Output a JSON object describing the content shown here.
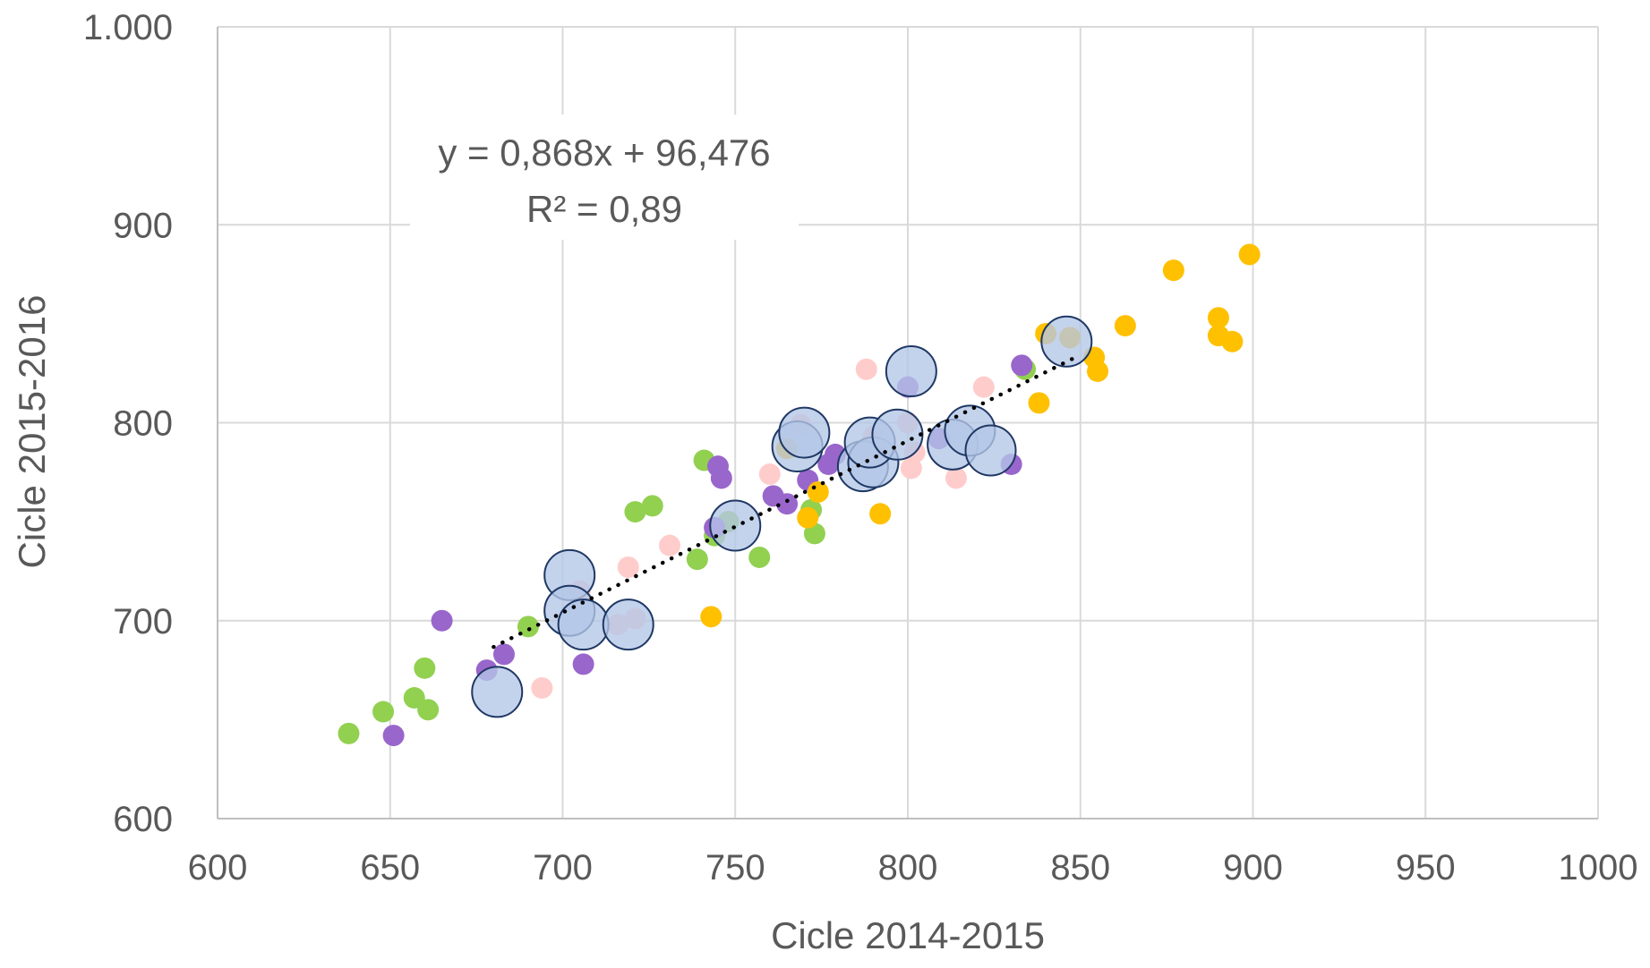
{
  "chart_data": {
    "type": "scatter",
    "title": "",
    "xlabel": "Cicle 2014-2015",
    "ylabel": "Cicle 2015-2016",
    "xlim": [
      600,
      1000
    ],
    "ylim": [
      600,
      1000
    ],
    "x_ticks": [
      600,
      650,
      700,
      750,
      800,
      850,
      900,
      950,
      1000
    ],
    "x_tick_labels": [
      "600",
      "650",
      "700",
      "750",
      "800",
      "850",
      "900",
      "950",
      "1000"
    ],
    "y_ticks": [
      600,
      700,
      800,
      900,
      1000
    ],
    "y_tick_labels": [
      "600",
      "700",
      "800",
      "900",
      "1.000"
    ],
    "grid": true,
    "legend": "none",
    "trendline": {
      "style": "dotted",
      "color": "#000000",
      "slope": 0.868,
      "intercept": 96.476,
      "x_range": [
        680,
        848
      ],
      "equation_label": "y = 0,868x + 96,476",
      "r2_label": "R² = 0,89"
    },
    "series": [
      {
        "color": "#92d050",
        "marker": "small",
        "points": [
          [
            638,
            643
          ],
          [
            648,
            654
          ],
          [
            657,
            661
          ],
          [
            660,
            676
          ],
          [
            661,
            655
          ],
          [
            690,
            697
          ],
          [
            721,
            755
          ],
          [
            726,
            758
          ],
          [
            739,
            731
          ],
          [
            741,
            781
          ],
          [
            744,
            743
          ],
          [
            748,
            750
          ],
          [
            757,
            732
          ],
          [
            772,
            756
          ],
          [
            773,
            744
          ],
          [
            834,
            827
          ]
        ]
      },
      {
        "color": "#9966cc",
        "marker": "small",
        "points": [
          [
            651,
            642
          ],
          [
            665,
            700
          ],
          [
            678,
            675
          ],
          [
            683,
            683
          ],
          [
            706,
            678
          ],
          [
            744,
            747
          ],
          [
            745,
            778
          ],
          [
            746,
            772
          ],
          [
            761,
            763
          ],
          [
            765,
            759
          ],
          [
            771,
            771
          ],
          [
            777,
            779
          ],
          [
            779,
            784
          ],
          [
            800,
            818
          ],
          [
            809,
            792
          ],
          [
            830,
            779
          ],
          [
            833,
            829
          ]
        ]
      },
      {
        "color": "#ffcccc",
        "marker": "small",
        "points": [
          [
            694,
            666
          ],
          [
            705,
            715
          ],
          [
            716,
            698
          ],
          [
            719,
            727
          ],
          [
            721,
            701
          ],
          [
            731,
            738
          ],
          [
            760,
            774
          ],
          [
            769,
            799
          ],
          [
            787,
            786
          ],
          [
            788,
            827
          ],
          [
            790,
            793
          ],
          [
            800,
            800
          ],
          [
            801,
            777
          ],
          [
            802,
            785
          ],
          [
            814,
            772
          ],
          [
            822,
            818
          ]
        ]
      },
      {
        "color": "#ffc000",
        "marker": "small",
        "points": [
          [
            743,
            702
          ],
          [
            765,
            787
          ],
          [
            771,
            752
          ],
          [
            774,
            765
          ],
          [
            792,
            754
          ],
          [
            838,
            810
          ],
          [
            840,
            845
          ],
          [
            847,
            843
          ],
          [
            854,
            833
          ],
          [
            855,
            826
          ],
          [
            863,
            849
          ],
          [
            877,
            877
          ],
          [
            890,
            853
          ],
          [
            890,
            844
          ],
          [
            894,
            841
          ],
          [
            899,
            885
          ]
        ]
      },
      {
        "color": "#b4c7e7",
        "marker": "large",
        "points": [
          [
            681,
            664
          ],
          [
            702,
            723
          ],
          [
            702,
            705
          ],
          [
            706,
            698
          ],
          [
            719,
            698
          ],
          [
            750,
            748
          ],
          [
            768,
            788
          ],
          [
            770,
            795
          ],
          [
            787,
            778
          ],
          [
            790,
            780
          ],
          [
            789,
            790
          ],
          [
            797,
            794
          ],
          [
            801,
            826
          ],
          [
            813,
            789
          ],
          [
            818,
            796
          ],
          [
            824,
            786
          ],
          [
            846,
            841
          ]
        ]
      }
    ]
  }
}
